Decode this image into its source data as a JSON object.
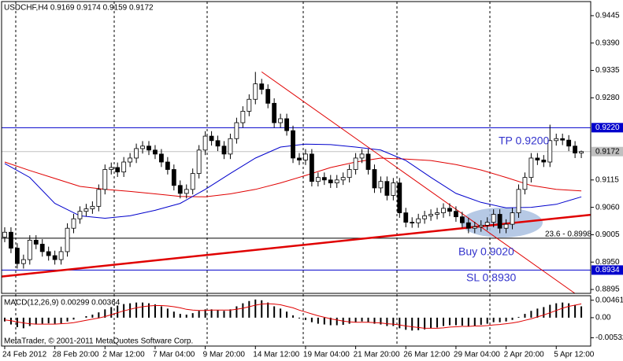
{
  "chart_data": [
    {
      "type": "candlestick",
      "title": "USDCHF,H4  0.9169 0.9174 0.9159 0.9172",
      "color": "#000000",
      "xlim": [
        -0.5,
        93.5
      ],
      "xticks": [
        {
          "value": 0,
          "label": "24 Feb 2012"
        },
        {
          "value": 8,
          "label": "28 Feb 20:00"
        },
        {
          "value": 16,
          "label": "2 Mar 12:00"
        },
        {
          "value": 24,
          "label": "7 Mar 04:00"
        },
        {
          "value": 32,
          "label": "9 Mar 20:00"
        },
        {
          "value": 40,
          "label": "14 Mar 12:00"
        },
        {
          "value": 48,
          "label": "19 Mar 04:00"
        },
        {
          "value": 56,
          "label": "21 Mar 20:00"
        },
        {
          "value": 64,
          "label": "26 Mar 12:00"
        },
        {
          "value": 72,
          "label": "29 Mar 04:00"
        },
        {
          "value": 80,
          "label": "2 Apr 20:00"
        },
        {
          "value": 88,
          "label": "5 Apr 12:00"
        }
      ],
      "ylim": [
        0.88872,
        0.94733
      ],
      "yticks": [
        0.9445,
        {
          "value": 0.939,
          "label": "0.9390"
        },
        0.9335,
        {
          "value": 0.928,
          "label": "0.9280"
        },
        0.9115,
        {
          "value": 0.906,
          "label": "0.9060"
        },
        0.9005,
        {
          "value": 0.895,
          "label": "0.8950"
        },
        0.8895
      ],
      "open": [
        0.9,
        0.901,
        0.8978,
        0.8947,
        0.8955,
        0.8994,
        0.8986,
        0.8971,
        0.8963,
        0.8955,
        0.8971,
        0.9018,
        0.9037,
        0.9052,
        0.9057,
        0.9062,
        0.9096,
        0.9136,
        0.914,
        0.9131,
        0.9151,
        0.9159,
        0.9178,
        0.9183,
        0.9175,
        0.9167,
        0.9151,
        0.9136,
        0.9104,
        0.9088,
        0.9096,
        0.9128,
        0.9175,
        0.9203,
        0.9194,
        0.9183,
        0.9167,
        0.9198,
        0.923,
        0.9253,
        0.9277,
        0.9308,
        0.9297,
        0.9269,
        0.923,
        0.9238,
        0.9214,
        0.9159,
        0.9155,
        0.9167,
        0.9112,
        0.912,
        0.9115,
        0.9109,
        0.9115,
        0.912,
        0.9136,
        0.9159,
        0.9167,
        0.9136,
        0.9099,
        0.9112,
        0.9084,
        0.9109,
        0.9049,
        0.903,
        0.9029,
        0.9037,
        0.9043,
        0.9046,
        0.9049,
        0.9058,
        0.9052,
        0.9041,
        0.9029,
        0.9018,
        0.9021,
        0.9024,
        0.903,
        0.9046,
        0.9018,
        0.9026,
        0.9049,
        0.9096,
        0.912,
        0.9159,
        0.9155,
        0.9151,
        0.9194,
        0.9198,
        0.9195,
        0.9183,
        0.9169
      ],
      "high": [
        0.902,
        0.902,
        0.8988,
        0.8965,
        0.9004,
        0.9004,
        0.8996,
        0.8981,
        0.8973,
        0.8981,
        0.9028,
        0.9047,
        0.9062,
        0.9067,
        0.9072,
        0.9106,
        0.9146,
        0.915,
        0.915,
        0.9161,
        0.9169,
        0.9188,
        0.9193,
        0.9193,
        0.9185,
        0.9177,
        0.9161,
        0.9146,
        0.9114,
        0.9106,
        0.9138,
        0.9185,
        0.9213,
        0.9213,
        0.9204,
        0.9193,
        0.9208,
        0.924,
        0.9263,
        0.9287,
        0.9332,
        0.9318,
        0.9307,
        0.9279,
        0.9248,
        0.9248,
        0.9224,
        0.9169,
        0.9177,
        0.9177,
        0.913,
        0.913,
        0.9125,
        0.9125,
        0.913,
        0.9146,
        0.9169,
        0.9177,
        0.9177,
        0.9146,
        0.9122,
        0.9122,
        0.9119,
        0.9119,
        0.9059,
        0.904,
        0.9047,
        0.9053,
        0.9056,
        0.9059,
        0.9068,
        0.9068,
        0.9062,
        0.9051,
        0.9039,
        0.9031,
        0.9034,
        0.904,
        0.9056,
        0.9056,
        0.9036,
        0.9059,
        0.9106,
        0.913,
        0.9169,
        0.9169,
        0.9165,
        0.9226,
        0.9208,
        0.9208,
        0.9205,
        0.9193,
        0.9174
      ],
      "low": [
        0.899,
        0.8968,
        0.8937,
        0.8937,
        0.8945,
        0.8976,
        0.8961,
        0.8953,
        0.8945,
        0.8945,
        0.8961,
        0.9008,
        0.9027,
        0.9042,
        0.9047,
        0.9052,
        0.9086,
        0.9126,
        0.9121,
        0.9121,
        0.9141,
        0.9149,
        0.9168,
        0.9165,
        0.9157,
        0.9141,
        0.9126,
        0.9094,
        0.9078,
        0.9078,
        0.9086,
        0.9118,
        0.9165,
        0.9184,
        0.9173,
        0.9157,
        0.9157,
        0.9188,
        0.922,
        0.9243,
        0.9267,
        0.9287,
        0.9259,
        0.922,
        0.922,
        0.9204,
        0.9149,
        0.9145,
        0.9145,
        0.9102,
        0.9102,
        0.9105,
        0.9099,
        0.9099,
        0.9105,
        0.911,
        0.9126,
        0.9149,
        0.9126,
        0.9089,
        0.9089,
        0.9074,
        0.9074,
        0.9039,
        0.902,
        0.9019,
        0.9019,
        0.9027,
        0.9033,
        0.9036,
        0.9039,
        0.9042,
        0.9031,
        0.9019,
        0.9008,
        0.9008,
        0.9011,
        0.9014,
        0.902,
        0.9008,
        0.9008,
        0.9016,
        0.9039,
        0.9086,
        0.911,
        0.9145,
        0.9141,
        0.9141,
        0.9184,
        0.9185,
        0.9173,
        0.9159,
        0.9159
      ],
      "close": [
        0.901,
        0.8978,
        0.8947,
        0.8955,
        0.8994,
        0.8986,
        0.8971,
        0.8963,
        0.8955,
        0.8971,
        0.9018,
        0.9037,
        0.9052,
        0.9057,
        0.9062,
        0.9096,
        0.9136,
        0.914,
        0.9131,
        0.9151,
        0.9159,
        0.9178,
        0.9183,
        0.9175,
        0.9167,
        0.9151,
        0.9136,
        0.9104,
        0.9088,
        0.9096,
        0.9128,
        0.9175,
        0.9203,
        0.9194,
        0.9183,
        0.9167,
        0.9198,
        0.923,
        0.9253,
        0.9277,
        0.9308,
        0.9297,
        0.9269,
        0.923,
        0.9238,
        0.9214,
        0.9159,
        0.9155,
        0.9167,
        0.9112,
        0.912,
        0.9115,
        0.9109,
        0.9115,
        0.912,
        0.9136,
        0.9159,
        0.9167,
        0.9136,
        0.9099,
        0.9112,
        0.9084,
        0.9109,
        0.9049,
        0.903,
        0.9029,
        0.9037,
        0.9043,
        0.9046,
        0.9049,
        0.9058,
        0.9052,
        0.9041,
        0.9029,
        0.9018,
        0.9021,
        0.9024,
        0.903,
        0.9046,
        0.9018,
        0.9026,
        0.9049,
        0.9096,
        0.912,
        0.9159,
        0.9155,
        0.9151,
        0.9194,
        0.9198,
        0.9195,
        0.9183,
        0.9169,
        0.9172
      ],
      "series": [
        {
          "color": "#e00000",
          "x": [
            0,
            4,
            8,
            12,
            16,
            20,
            24,
            28,
            32,
            36,
            40,
            44,
            48,
            52,
            56,
            60,
            64,
            68,
            72,
            76,
            80,
            84,
            88,
            92
          ],
          "values": [
            0.9151,
            0.9134,
            0.9118,
            0.9102,
            0.9096,
            0.9092,
            0.9087,
            0.9082,
            0.9081,
            0.9087,
            0.9096,
            0.9109,
            0.9124,
            0.914,
            0.9151,
            0.9159,
            0.9157,
            0.9154,
            0.9146,
            0.9135,
            0.912,
            0.9104,
            0.9096,
            0.9093
          ]
        },
        {
          "color": "#0000cc",
          "x": [
            0,
            4,
            8,
            12,
            16,
            20,
            24,
            28,
            32,
            36,
            40,
            44,
            48,
            52,
            56,
            60,
            64,
            68,
            72,
            76,
            80,
            84,
            88,
            92
          ],
          "values": [
            0.9148,
            0.912,
            0.9068,
            0.9043,
            0.9038,
            0.9043,
            0.9054,
            0.9068,
            0.9096,
            0.9128,
            0.9159,
            0.9181,
            0.9187,
            0.9186,
            0.9181,
            0.9175,
            0.9154,
            0.912,
            0.9088,
            0.907,
            0.9059,
            0.906,
            0.9066,
            0.9081
          ]
        }
      ],
      "trendlines": [
        {
          "color": "#e00000",
          "line_width": 2.5,
          "x": [
            -0.5,
            93.5
          ],
          "values": [
            0.8921,
            0.9045
          ]
        },
        {
          "color": "#e00000",
          "line_width": 1,
          "x": [
            41,
            91
          ],
          "values": [
            0.9332,
            0.8887
          ]
        }
      ],
      "hlines": [
        {
          "value": 0.922,
          "label": "0.9220",
          "color": "#0000cc"
        },
        {
          "value": 0.9172,
          "label": "0.9172",
          "color": "#c0c0c0"
        },
        {
          "value": 0.8934,
          "label": "0.8934",
          "color": "#0000cc"
        },
        {
          "value": 0.8998,
          "color": "#000000"
        }
      ],
      "annotations": [
        {
          "text": "TP 0.9200",
          "color": "#3333cc"
        },
        {
          "text": "Buy 0.9020",
          "color": "#3333cc"
        },
        {
          "text": "SL 0.8930",
          "color": "#3333cc"
        },
        {
          "text": "23.6 - 0.8998",
          "color": "#000000"
        }
      ]
    },
    {
      "type": "macd",
      "title": "MACD(12,26,9) 0.00299 0.00364",
      "caption": "MetaTrader, © 2001-2011 MetaQuotes Software Corp.",
      "color": "#000000",
      "ylim": [
        -0.0075,
        0.0058
      ],
      "yticks": [
        0.00461,
        {
          "value": 0,
          "label": "0.00"
        },
        -0.00532
      ],
      "values": [
        -0.001,
        -0.0018,
        -0.0025,
        -0.0028,
        -0.0022,
        -0.0018,
        -0.0016,
        -0.0015,
        -0.0016,
        -0.0015,
        -0.001,
        -0.0005,
        0.0,
        0.0004,
        0.0008,
        0.0014,
        0.0022,
        0.0028,
        0.0032,
        0.0036,
        0.0038,
        0.004,
        0.004,
        0.0038,
        0.0035,
        0.003,
        0.0024,
        0.0016,
        0.001,
        0.0008,
        0.0012,
        0.0018,
        0.0022,
        0.0022,
        0.002,
        0.0018,
        0.0022,
        0.003,
        0.0038,
        0.0044,
        0.0048,
        0.0046,
        0.004,
        0.003,
        0.0024,
        0.0016,
        0.0006,
        -0.0002,
        -0.0006,
        -0.0012,
        -0.0016,
        -0.0018,
        -0.002,
        -0.002,
        -0.0019,
        -0.0016,
        -0.0012,
        -0.001,
        -0.0012,
        -0.0016,
        -0.0018,
        -0.0022,
        -0.0022,
        -0.0028,
        -0.0032,
        -0.0034,
        -0.0033,
        -0.0031,
        -0.0028,
        -0.0026,
        -0.0022,
        -0.002,
        -0.002,
        -0.0021,
        -0.0022,
        -0.0021,
        -0.0019,
        -0.0016,
        -0.0012,
        -0.0012,
        -0.001,
        -0.0006,
        0.0002,
        0.001,
        0.0018,
        0.0024,
        0.0028,
        0.0034,
        0.0038,
        0.004,
        0.0038,
        0.0034,
        0.00299
      ],
      "series": [
        {
          "color": "#e00000",
          "values": [
            -0.0006,
            -0.0008,
            -0.0011,
            -0.0014,
            -0.0016,
            -0.0017,
            -0.0017,
            -0.0017,
            -0.0017,
            -0.0016,
            -0.0015,
            -0.0013,
            -0.001,
            -0.0007,
            -0.0004,
            -0.0001,
            0.0003,
            0.0008,
            0.0013,
            0.0018,
            0.0022,
            0.0026,
            0.0029,
            0.0031,
            0.0032,
            0.0032,
            0.0031,
            0.0029,
            0.0026,
            0.0022,
            0.002,
            0.0019,
            0.0019,
            0.002,
            0.002,
            0.002,
            0.002,
            0.0022,
            0.0025,
            0.0029,
            0.0033,
            0.0036,
            0.0037,
            0.0036,
            0.0034,
            0.003,
            0.0026,
            0.002,
            0.0015,
            0.001,
            0.0005,
            0.0001,
            -0.0003,
            -0.0006,
            -0.0009,
            -0.0011,
            -0.0012,
            -0.0012,
            -0.0012,
            -0.0013,
            -0.0014,
            -0.0016,
            -0.0017,
            -0.0019,
            -0.0022,
            -0.0024,
            -0.0026,
            -0.0028,
            -0.0028,
            -0.0028,
            -0.0027,
            -0.0025,
            -0.0024,
            -0.0023,
            -0.0023,
            -0.0022,
            -0.0022,
            -0.0021,
            -0.0019,
            -0.0018,
            -0.0016,
            -0.0014,
            -0.0011,
            -0.0007,
            -0.0003,
            0.0002,
            0.0007,
            0.0013,
            0.0019,
            0.0025,
            0.003,
            0.0033,
            0.00364
          ]
        }
      ]
    }
  ]
}
